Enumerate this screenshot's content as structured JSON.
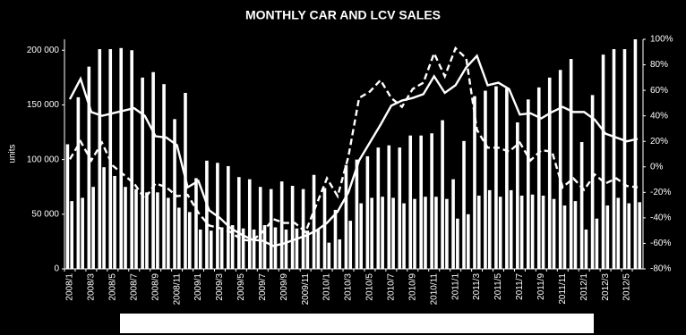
{
  "chart_data": {
    "type": "bar_line",
    "title": "MONTHLY CAR AND LCV SALES",
    "y_label": "units",
    "categories": [
      "2008/1",
      null,
      "2008/3",
      null,
      "2008/5",
      null,
      "2008/7",
      null,
      "2008/9",
      null,
      "2008/11",
      null,
      "2009/1",
      null,
      "2009/3",
      null,
      "2009/5",
      null,
      "2009/7",
      null,
      "2009/9",
      null,
      "2009/11",
      null,
      "2010/1",
      null,
      "2010/3",
      null,
      "2010/5",
      null,
      "2010/7",
      null,
      "2010/9",
      null,
      "2010/11",
      null,
      "2011/1",
      null,
      "2011/3",
      null,
      "2011/5",
      null,
      "2011/7",
      null,
      "2011/9",
      null,
      "2011/11",
      null,
      "2012/1",
      null,
      "2012/3",
      null,
      "2012/5",
      null
    ],
    "series": [
      {
        "kind": "bar",
        "color": "#ffffff",
        "values": [
          114000,
          157000,
          185000,
          201000,
          201000,
          202000,
          200000,
          175000,
          180000,
          169000,
          137000,
          161000,
          83000,
          99000,
          97000,
          94000,
          84000,
          82000,
          75000,
          73000,
          80000,
          76000,
          73000,
          86000,
          74000,
          54000,
          95000,
          100000,
          103000,
          111000,
          113000,
          111000,
          122000,
          122000,
          124000,
          136000,
          82000,
          117000,
          158000,
          163000,
          167000,
          165000,
          134000,
          155000,
          166000,
          175000,
          182000,
          192000,
          116000,
          159000,
          196000,
          201000,
          201000,
          210000
        ]
      },
      {
        "kind": "bar",
        "color": "#ffffff",
        "values": [
          62000,
          65000,
          75000,
          93000,
          85000,
          75000,
          73000,
          70000,
          70000,
          65000,
          56000,
          52000,
          36000,
          35000,
          38000,
          40000,
          37000,
          36000,
          40000,
          38000,
          36000,
          37000,
          35000,
          36000,
          24000,
          27000,
          44000,
          60000,
          65000,
          66000,
          65000,
          60000,
          64000,
          66000,
          66000,
          64000,
          46000,
          50000,
          67000,
          72000,
          66000,
          72000,
          67000,
          68000,
          67000,
          64000,
          58000,
          62000,
          36000,
          46000,
          58000,
          65000,
          60000,
          61000
        ]
      },
      {
        "kind": "line",
        "axis": "y2",
        "color": "#ffffff",
        "dash": false,
        "values": [
          53,
          69,
          43,
          40,
          42,
          44,
          46,
          40,
          24,
          23,
          17,
          -16,
          -11,
          -34,
          -40,
          -48,
          -53,
          -57,
          -58,
          -62,
          -60,
          -57,
          -54,
          -50,
          -44,
          -35,
          -20,
          5,
          19,
          33,
          48,
          52,
          54,
          57,
          71,
          58,
          64,
          78,
          87,
          64,
          66,
          61,
          41,
          42,
          38,
          43,
          47,
          43,
          43,
          37,
          26,
          23,
          20,
          22
        ]
      },
      {
        "kind": "line",
        "axis": "y2",
        "color": "#ffffff",
        "dash": true,
        "values": [
          6,
          20,
          5,
          19,
          1,
          -6,
          -13,
          -25,
          -13,
          -16,
          -23,
          -22,
          -36,
          -46,
          -48,
          -51,
          -57,
          -58,
          -51,
          -41,
          -44,
          -44,
          -51,
          -30,
          -9,
          -23,
          8,
          54,
          59,
          68,
          54,
          47,
          61,
          66,
          89,
          71,
          93,
          85,
          29,
          15,
          15,
          12,
          19,
          5,
          13,
          12,
          -16,
          -9,
          -18,
          -6,
          -13,
          -9,
          -15,
          -16
        ]
      }
    ],
    "ylim": [
      0,
      210000
    ],
    "yticks": [
      0,
      {
        "value": 50000,
        "label": "50 000"
      },
      {
        "value": 100000,
        "label": "100 000"
      },
      {
        "value": 150000,
        "label": "150 000"
      },
      {
        "value": 200000,
        "label": "200 000"
      }
    ],
    "y2lim": [
      -80,
      100
    ],
    "y2ticks": [
      {
        "value": -80,
        "label": "-80%"
      },
      {
        "value": -60,
        "label": "-60%"
      },
      {
        "value": -40,
        "label": "-40%"
      },
      {
        "value": -20,
        "label": "-20%"
      },
      {
        "value": 0,
        "label": "0%"
      },
      {
        "value": 20,
        "label": "20%"
      },
      {
        "value": 40,
        "label": "40%"
      },
      {
        "value": 60,
        "label": "60%"
      },
      {
        "value": 80,
        "label": "80%"
      },
      {
        "value": 100,
        "label": "100%"
      }
    ],
    "grid": false
  }
}
